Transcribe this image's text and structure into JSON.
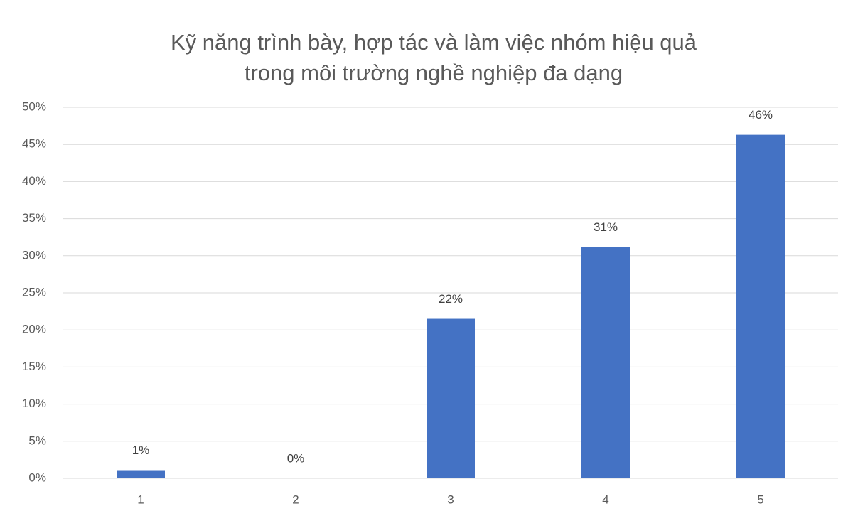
{
  "chart_data": {
    "type": "bar",
    "title": [
      "Kỹ năng trình bày, hợp tác và làm việc nhóm hiệu quả",
      "trong môi trường nghề nghiệp đa dạng"
    ],
    "categories": [
      "1",
      "2",
      "3",
      "4",
      "5"
    ],
    "values": [
      1.1,
      0,
      21.5,
      31.2,
      46.3
    ],
    "value_labels": [
      "1%",
      "0%",
      "22%",
      "31%",
      "46%"
    ],
    "color": "#4472c4",
    "ylim": [
      0,
      50
    ],
    "yticks": [
      {
        "value": 0,
        "label": "0%"
      },
      {
        "value": 5,
        "label": "5%"
      },
      {
        "value": 10,
        "label": "10%"
      },
      {
        "value": 15,
        "label": "15%"
      },
      {
        "value": 20,
        "label": "20%"
      },
      {
        "value": 25,
        "label": "25%"
      },
      {
        "value": 30,
        "label": "30%"
      },
      {
        "value": 35,
        "label": "35%"
      },
      {
        "value": 40,
        "label": "40%"
      },
      {
        "value": 45,
        "label": "45%"
      },
      {
        "value": 50,
        "label": "50%"
      }
    ],
    "grid": true
  }
}
